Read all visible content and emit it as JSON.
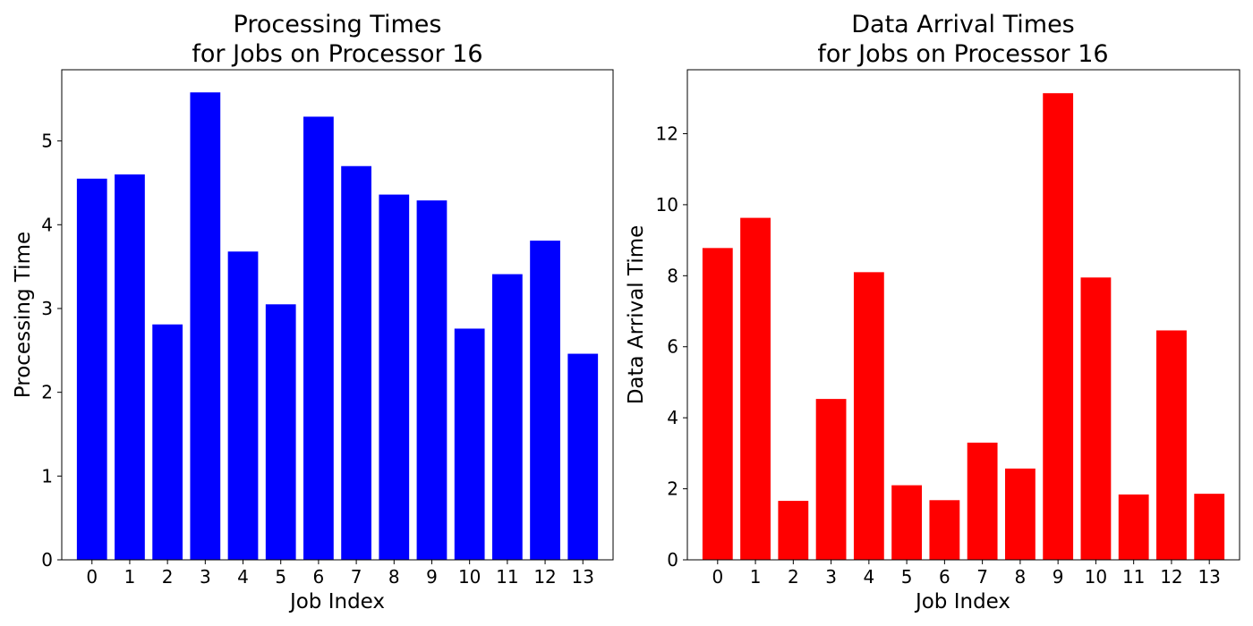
{
  "chart_data": [
    {
      "type": "bar",
      "title": [
        "Processing Times",
        "for Jobs on Processor 16"
      ],
      "xlabel": "Job Index",
      "ylabel": "Processing Time",
      "categories": [
        "0",
        "1",
        "2",
        "3",
        "4",
        "5",
        "6",
        "7",
        "8",
        "9",
        "10",
        "11",
        "12",
        "13"
      ],
      "values": [
        4.55,
        4.6,
        2.81,
        5.58,
        3.68,
        3.05,
        5.29,
        4.7,
        4.36,
        4.29,
        2.76,
        3.41,
        3.81,
        2.46
      ],
      "color": "#0000ff",
      "ylim": [
        0,
        5.85
      ],
      "yticks": [
        0,
        1,
        2,
        3,
        4,
        5
      ],
      "grid": false,
      "legend": false
    },
    {
      "type": "bar",
      "title": [
        "Data Arrival Times",
        "for Jobs on Processor 16"
      ],
      "xlabel": "Job Index",
      "ylabel": "Data Arrival Time",
      "categories": [
        "0",
        "1",
        "2",
        "3",
        "4",
        "5",
        "6",
        "7",
        "8",
        "9",
        "10",
        "11",
        "12",
        "13"
      ],
      "values": [
        8.78,
        9.63,
        1.66,
        4.53,
        8.1,
        2.1,
        1.68,
        3.3,
        2.57,
        13.14,
        7.95,
        1.84,
        6.46,
        1.86
      ],
      "color": "#ff0000",
      "ylim": [
        0,
        13.8
      ],
      "yticks": [
        0,
        2,
        4,
        6,
        8,
        10,
        12
      ],
      "grid": false,
      "legend": false
    }
  ]
}
